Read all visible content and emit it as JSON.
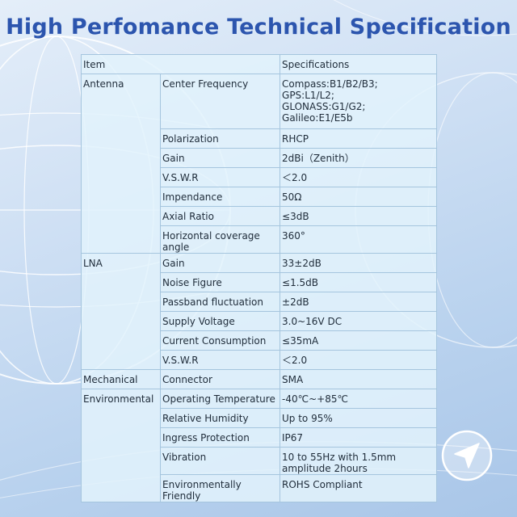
{
  "title": "High Perfomance Technical Specification",
  "table": {
    "header": {
      "item": "Item",
      "spec": "Specifications"
    },
    "groups": [
      {
        "name": "Antenna",
        "rows": [
          {
            "param": "Center Frequency",
            "value": "Compass:B1/B2/B3;\nGPS:L1/L2;\nGLONASS:G1/G2;\nGalileo:E1/E5b"
          },
          {
            "param": "Polarization",
            "value": "RHCP"
          },
          {
            "param": "Gain",
            "value": "2dBi（Zenith）"
          },
          {
            "param": "V.S.W.R",
            "value": "＜2.0"
          },
          {
            "param": "Impendance",
            "value": "50Ω"
          },
          {
            "param": "Axial Ratio",
            "value": "≤3dB"
          },
          {
            "param": "Horizontal coverage angle",
            "value": "360°"
          }
        ]
      },
      {
        "name": "LNA",
        "rows": [
          {
            "param": "Gain",
            "value": "33±2dB"
          },
          {
            "param": "Noise Figure",
            "value": "≤1.5dB"
          },
          {
            "param": "Passband fluctuation",
            "value": "±2dB"
          },
          {
            "param": "Supply Voltage",
            "value": "3.0~16V DC"
          },
          {
            "param": "Current Consumption",
            "value": "≤35mA"
          },
          {
            "param": "V.S.W.R",
            "value": "＜2.0"
          }
        ]
      },
      {
        "name": "Mechanical",
        "rows": [
          {
            "param": "Connector",
            "value": "SMA"
          }
        ]
      },
      {
        "name": "Environmental",
        "rows": [
          {
            "param": "Operating Temperature",
            "value": "-40℃~+85℃"
          },
          {
            "param": "Relative Humidity",
            "value": "Up to 95%"
          },
          {
            "param": "Ingress Protection",
            "value": "IP67"
          },
          {
            "param": "Vibration",
            "value": "10 to 55Hz with 1.5mm amplitude 2hours"
          },
          {
            "param": "Environmentally Friendly",
            "value": "ROHS Compliant"
          }
        ]
      }
    ]
  },
  "icons": {
    "globe": "globe-wireframe-icon",
    "navigation": "navigation-arrow-icon"
  }
}
